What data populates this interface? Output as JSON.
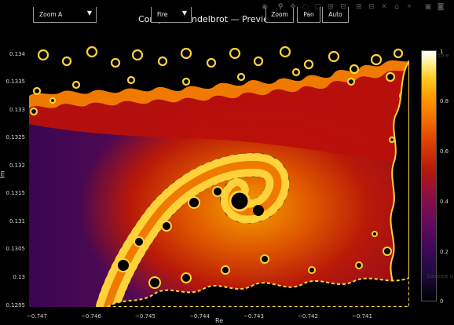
{
  "title": "Complex Mandelbrot — Preview",
  "dropdowns": {
    "zoom": {
      "selected": "Zoom A"
    },
    "colormap": {
      "selected": "Fire"
    }
  },
  "mode_buttons": {
    "zoom": "Zoom",
    "pan": "Pan",
    "auto": "Auto"
  },
  "modebar_icons": [
    "camera-icon",
    "zoom-icon",
    "pan-icon",
    "lasso-icon",
    "select-box-icon",
    "zoom-in-icon",
    "zoom-out-icon",
    "autoscale-icon",
    "home-icon",
    "spike-icon",
    "hover-icon",
    "save-icon",
    "snapshot-icon"
  ],
  "axes": {
    "xlabel": "Re",
    "ylabel": "Im",
    "xticks": [
      "−0.747",
      "−0.746",
      "−0.745",
      "−0.744",
      "−0.743",
      "−0.742",
      "−0.741"
    ],
    "yticks": [
      "0.134",
      "0.1335",
      "0.133",
      "0.1325",
      "0.132",
      "0.1315",
      "0.131",
      "0.1305",
      "0.13",
      "0.1295"
    ]
  },
  "colorbar": {
    "ticks": [
      "1",
      "0.8",
      "0.6",
      "0.4",
      "0.2",
      "0"
    ],
    "colors": [
      "#000000",
      "#3d0858",
      "#8a0f44",
      "#d83a00",
      "#ff9d00",
      "#ffffff"
    ]
  },
  "faint_texts": {
    "right_top": "to e",
    "right_bottom": "Licence u"
  },
  "palette": {
    "background": "#000000",
    "bulk": "#3a0650",
    "red": "#b8100a",
    "orange": "#f07a00",
    "yellow": "#ffd23a"
  }
}
